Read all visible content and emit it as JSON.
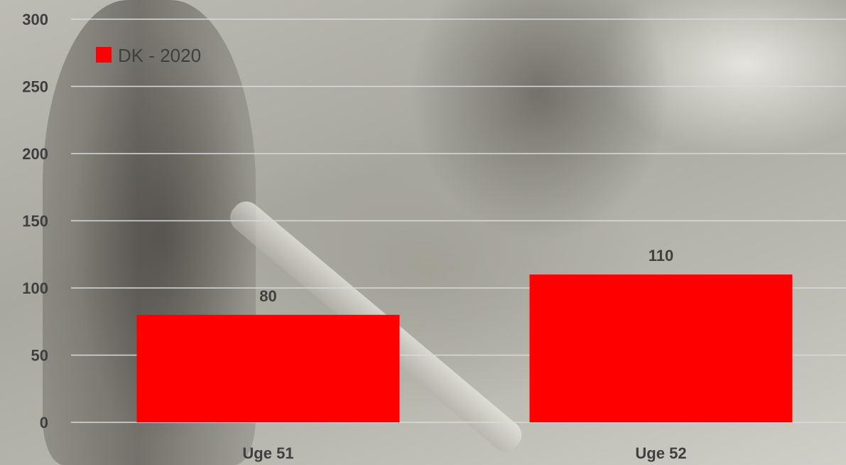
{
  "chart_data": {
    "type": "bar",
    "categories": [
      "Uge 51",
      "Uge 52"
    ],
    "series": [
      {
        "name": "DK - 2020",
        "values": [
          80,
          110
        ],
        "color": "#ff0000"
      }
    ],
    "data_labels": [
      "80",
      "110"
    ],
    "ylim": [
      0,
      300
    ],
    "yticks": [
      0,
      50,
      100,
      150,
      200,
      250,
      300
    ],
    "ytick_labels": [
      "0",
      "50",
      "100",
      "150",
      "200",
      "250",
      "300"
    ],
    "grid": true,
    "legend": {
      "position": "top-left",
      "entries": [
        "DK - 2020"
      ]
    },
    "title": "",
    "xlabel": "",
    "ylabel": ""
  }
}
